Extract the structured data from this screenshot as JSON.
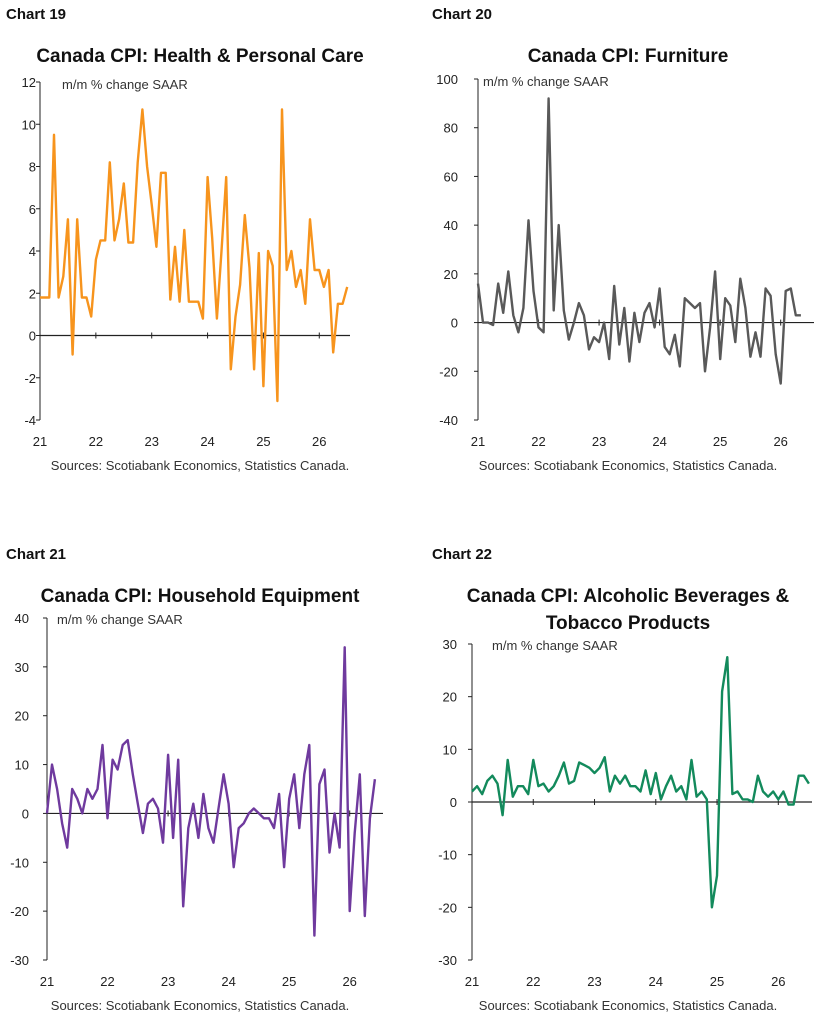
{
  "chart_data": [
    {
      "type": "line",
      "chart_label": "Chart 19",
      "title": "Canada CPI: Health & Personal Care",
      "unit": "m/m % change SAAR",
      "source": "Sources: Scotiabank Economics, Statistics Canada.",
      "color": "#F7941D",
      "ylim": [
        -4,
        12
      ],
      "yticks": [
        -4,
        -2,
        0,
        2,
        4,
        6,
        8,
        10,
        12
      ],
      "xlim": [
        2021.0,
        2026.55
      ],
      "xticks": [
        {
          "v": 2021.0,
          "label": "21"
        },
        {
          "v": 2022.0,
          "label": "22"
        },
        {
          "v": 2023.0,
          "label": "23"
        },
        {
          "v": 2024.0,
          "label": "24"
        },
        {
          "v": 2025.0,
          "label": "25"
        },
        {
          "v": 2026.0,
          "label": "26"
        }
      ],
      "x_start": 2021.0,
      "x_step": 0.083333,
      "series": [
        {
          "values": [
            1.8,
            1.8,
            1.8,
            9.5,
            1.8,
            2.8,
            5.5,
            -0.9,
            5.5,
            1.8,
            1.8,
            0.9,
            3.6,
            4.5,
            4.5,
            8.2,
            4.5,
            5.5,
            7.2,
            4.4,
            4.4,
            8.2,
            10.7,
            8.0,
            6.2,
            4.2,
            7.7,
            7.7,
            1.7,
            4.2,
            1.6,
            5.0,
            1.6,
            1.6,
            1.6,
            0.8,
            7.5,
            4.6,
            0.8,
            4.0,
            7.5,
            -1.6,
            0.9,
            2.4,
            5.7,
            3.2,
            -1.6,
            3.9,
            -2.4,
            4.0,
            3.3,
            -3.1,
            10.7,
            3.1,
            4.0,
            2.3,
            3.1,
            1.5,
            5.5,
            3.1,
            3.1,
            2.3,
            3.1,
            -0.8,
            1.5,
            1.5,
            2.3
          ]
        }
      ]
    },
    {
      "type": "line",
      "chart_label": "Chart 20",
      "title": "Canada CPI: Furniture",
      "unit": "m/m % change SAAR",
      "source": "Sources: Scotiabank Economics, Statistics Canada.",
      "color": "#595959",
      "ylim": [
        -40,
        100
      ],
      "yticks": [
        -40,
        -20,
        0,
        20,
        40,
        60,
        80,
        100
      ],
      "xlim": [
        2021.0,
        2026.55
      ],
      "xticks": [
        {
          "v": 2021.0,
          "label": "21"
        },
        {
          "v": 2022.0,
          "label": "22"
        },
        {
          "v": 2023.0,
          "label": "23"
        },
        {
          "v": 2024.0,
          "label": "24"
        },
        {
          "v": 2025.0,
          "label": "25"
        },
        {
          "v": 2026.0,
          "label": "26"
        }
      ],
      "x_start": 2021.0,
      "x_step": 0.083333,
      "series": [
        {
          "values": [
            16,
            0,
            0,
            -1,
            16,
            4,
            21,
            3,
            -4,
            6,
            42,
            13,
            -2,
            -4,
            92,
            5,
            40,
            5,
            -7,
            0,
            8,
            3,
            -11,
            -6,
            -8,
            0,
            -15,
            15,
            -9,
            6,
            -16,
            4,
            -8,
            4,
            8,
            -2,
            14,
            -10,
            -13,
            -5,
            -18,
            10,
            8,
            6,
            8,
            -20,
            -2,
            21,
            -15,
            10,
            7,
            -8,
            18,
            6,
            -14,
            -4,
            -14,
            14,
            11,
            -13,
            -25,
            13,
            14,
            3,
            3
          ]
        }
      ]
    },
    {
      "type": "line",
      "chart_label": "Chart 21",
      "title": "Canada CPI: Household Equipment",
      "unit": "m/m % change SAAR",
      "source": "Sources: Scotiabank Economics, Statistics Canada.",
      "color": "#6F3A9E",
      "ylim": [
        -30,
        40
      ],
      "yticks": [
        -30,
        -20,
        -10,
        0,
        10,
        20,
        30,
        40
      ],
      "xlim": [
        2021.0,
        2026.55
      ],
      "xticks": [
        {
          "v": 2021.0,
          "label": "21"
        },
        {
          "v": 2022.0,
          "label": "22"
        },
        {
          "v": 2023.0,
          "label": "23"
        },
        {
          "v": 2024.0,
          "label": "24"
        },
        {
          "v": 2025.0,
          "label": "25"
        },
        {
          "v": 2026.0,
          "label": "26"
        }
      ],
      "x_start": 2021.0,
      "x_step": 0.083333,
      "series": [
        {
          "values": [
            0,
            10,
            5,
            -2,
            -7,
            5,
            3,
            0,
            5,
            3,
            5,
            14,
            -1,
            11,
            9,
            14,
            15,
            8,
            2,
            -4,
            2,
            3,
            1,
            -6,
            12,
            -5,
            11,
            -19,
            -3,
            2,
            -5,
            4,
            -3,
            -6,
            1,
            8,
            2,
            -11,
            -3,
            -2,
            0,
            1,
            0,
            -1,
            -1,
            -3,
            4,
            -11,
            3,
            8,
            -3,
            8,
            14,
            -25,
            6,
            9,
            -8,
            0,
            -7,
            34,
            -20,
            -4,
            8,
            -21,
            -1,
            7
          ]
        }
      ]
    },
    {
      "type": "line",
      "chart_label": "Chart 22",
      "title": "Canada CPI: Alcoholic Beverages & Tobacco Products",
      "unit": "m/m % change SAAR",
      "source": "Sources: Scotiabank Economics, Statistics Canada.",
      "color": "#138A5C",
      "ylim": [
        -30,
        30
      ],
      "yticks": [
        -30,
        -20,
        -10,
        0,
        10,
        20,
        30
      ],
      "xlim": [
        2021.0,
        2026.55
      ],
      "xticks": [
        {
          "v": 2021.0,
          "label": "21"
        },
        {
          "v": 2022.0,
          "label": "22"
        },
        {
          "v": 2023.0,
          "label": "23"
        },
        {
          "v": 2024.0,
          "label": "24"
        },
        {
          "v": 2025.0,
          "label": "25"
        },
        {
          "v": 2026.0,
          "label": "26"
        }
      ],
      "x_start": 2021.0,
      "x_step": 0.083333,
      "series": [
        {
          "values": [
            2,
            3,
            1.5,
            4,
            5,
            3.5,
            -2.5,
            8,
            1,
            3,
            3,
            1.5,
            8,
            3,
            3.5,
            2,
            3,
            5,
            7.5,
            3.5,
            4,
            7.5,
            7,
            6.5,
            5.5,
            6.5,
            8.5,
            2,
            5,
            3.5,
            5,
            3,
            3,
            2,
            6,
            1.5,
            5.5,
            0.5,
            3,
            5,
            2,
            3,
            0.5,
            8,
            1,
            2,
            0.5,
            -20,
            -14,
            21,
            27.5,
            1.5,
            2,
            0.5,
            0.5,
            0,
            5,
            2,
            1,
            2,
            0.5,
            2,
            -0.5,
            -0.5,
            5,
            5,
            3.5
          ]
        }
      ]
    }
  ]
}
